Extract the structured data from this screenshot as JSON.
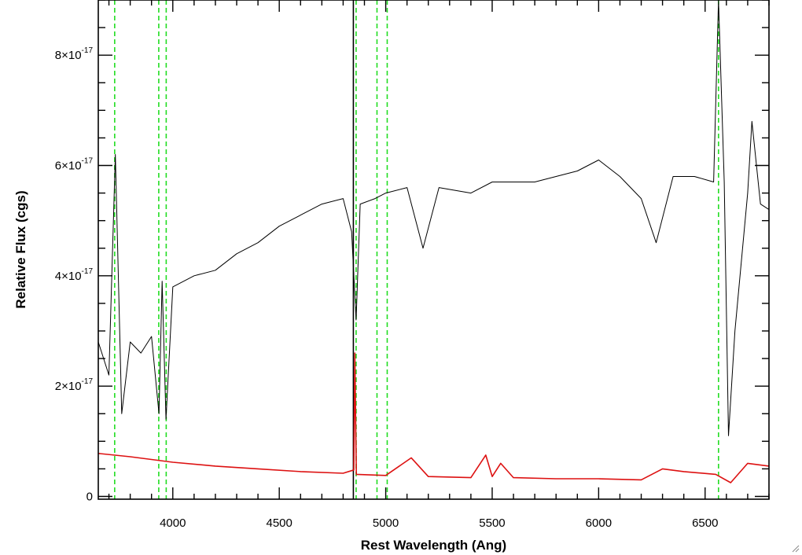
{
  "chart_data": {
    "type": "line",
    "xlabel": "Rest Wavelength (Ang)",
    "ylabel": "Relative Flux (cgs)",
    "xlim": [
      3650,
      6800
    ],
    "ylim": [
      -5e-19,
      9e-17
    ],
    "xticks": [
      4000,
      4500,
      5000,
      5500,
      6000,
      6500
    ],
    "yticks": [
      {
        "value": 0,
        "label": "0",
        "mantissa": "0",
        "exp": ""
      },
      {
        "value": 2e-17,
        "label": "2×10^-17",
        "mantissa": "2×10",
        "exp": "-17"
      },
      {
        "value": 4e-17,
        "label": "4×10^-17",
        "mantissa": "4×10",
        "exp": "-17"
      },
      {
        "value": 6e-17,
        "label": "6×10^-17",
        "mantissa": "6×10",
        "exp": "-17"
      },
      {
        "value": 8e-17,
        "label": "8×10^-17",
        "mantissa": "8×10",
        "exp": "-17"
      }
    ],
    "grid": false,
    "colors": {
      "spectrum": "#000000",
      "error": "#dd1111",
      "lines": "#22dd22"
    },
    "series": [
      {
        "key": "spectrum",
        "color": "#000000",
        "points": [
          [
            3650,
            2.8e-17
          ],
          [
            3700,
            2.2e-17
          ],
          [
            3730,
            6.2e-17
          ],
          [
            3760,
            1.5e-17
          ],
          [
            3800,
            2.8e-17
          ],
          [
            3850,
            2.6e-17
          ],
          [
            3900,
            2.9e-17
          ],
          [
            3935,
            1.5e-17
          ],
          [
            3950,
            3.9e-17
          ],
          [
            3968,
            1.4e-17
          ],
          [
            4000,
            3.8e-17
          ],
          [
            4100,
            4e-17
          ],
          [
            4200,
            4.1e-17
          ],
          [
            4300,
            4.4e-17
          ],
          [
            4400,
            4.6e-17
          ],
          [
            4500,
            4.9e-17
          ],
          [
            4600,
            5.1e-17
          ],
          [
            4700,
            5.3e-17
          ],
          [
            4800,
            5.4e-17
          ],
          [
            4840,
            4.8e-17
          ],
          [
            4861,
            3.2e-17
          ],
          [
            4880,
            5.3e-17
          ],
          [
            4950,
            5.4e-17
          ],
          [
            5000,
            5.5e-17
          ],
          [
            5100,
            5.6e-17
          ],
          [
            5175,
            4.5e-17
          ],
          [
            5250,
            5.6e-17
          ],
          [
            5400,
            5.5e-17
          ],
          [
            5500,
            5.7e-17
          ],
          [
            5600,
            5.7e-17
          ],
          [
            5700,
            5.7e-17
          ],
          [
            5800,
            5.8e-17
          ],
          [
            5900,
            5.9e-17
          ],
          [
            6000,
            6.1e-17
          ],
          [
            6100,
            5.8e-17
          ],
          [
            6200,
            5.4e-17
          ],
          [
            6270,
            4.6e-17
          ],
          [
            6350,
            5.8e-17
          ],
          [
            6450,
            5.8e-17
          ],
          [
            6540,
            5.7e-17
          ],
          [
            6563,
            9e-17
          ],
          [
            6590,
            5.7e-17
          ],
          [
            6610,
            1.1e-17
          ],
          [
            6640,
            3e-17
          ],
          [
            6700,
            5.5e-17
          ],
          [
            6720,
            6.8e-17
          ],
          [
            6760,
            5.3e-17
          ],
          [
            6800,
            5.2e-17
          ]
        ]
      },
      {
        "key": "error",
        "color": "#dd1111",
        "points": [
          [
            3650,
            7.8e-18
          ],
          [
            3800,
            7.2e-18
          ],
          [
            4000,
            6.2e-18
          ],
          [
            4200,
            5.5e-18
          ],
          [
            4400,
            5e-18
          ],
          [
            4600,
            4.5e-18
          ],
          [
            4800,
            4.2e-18
          ],
          [
            4850,
            4.8e-18
          ],
          [
            4855,
            2.6e-17
          ],
          [
            4862,
            4e-18
          ],
          [
            5000,
            3.8e-18
          ],
          [
            5120,
            7e-18
          ],
          [
            5200,
            3.6e-18
          ],
          [
            5400,
            3.4e-18
          ],
          [
            5470,
            7.5e-18
          ],
          [
            5500,
            3.6e-18
          ],
          [
            5540,
            6e-18
          ],
          [
            5600,
            3.4e-18
          ],
          [
            5800,
            3.2e-18
          ],
          [
            6000,
            3.2e-18
          ],
          [
            6200,
            3e-18
          ],
          [
            6300,
            5e-18
          ],
          [
            6400,
            4.5e-18
          ],
          [
            6550,
            4e-18
          ],
          [
            6620,
            2.5e-18
          ],
          [
            6700,
            6e-18
          ],
          [
            6800,
            5.5e-18
          ]
        ]
      }
    ],
    "vertical_lines": [
      {
        "x": 3727,
        "style": "dashed",
        "color": "#22dd22"
      },
      {
        "x": 3934,
        "style": "dashed",
        "color": "#22dd22"
      },
      {
        "x": 3969,
        "style": "dashed",
        "color": "#22dd22"
      },
      {
        "x": 4848,
        "style": "solid",
        "color": "#000000"
      },
      {
        "x": 4861,
        "style": "dashed",
        "color": "#22dd22"
      },
      {
        "x": 4959,
        "style": "dashed",
        "color": "#22dd22"
      },
      {
        "x": 5007,
        "style": "dashed",
        "color": "#22dd22"
      },
      {
        "x": 6563,
        "style": "dashed",
        "color": "#22dd22"
      }
    ]
  }
}
